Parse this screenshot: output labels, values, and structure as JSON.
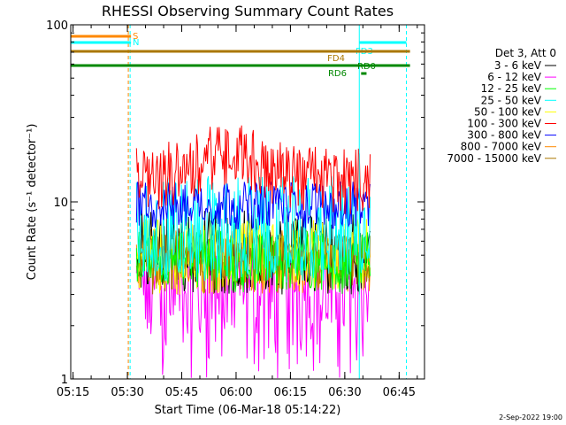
{
  "chart_data": {
    "type": "line",
    "title": "RHESSI Observing Summary Count Rates",
    "xlabel": "Start Time (06-Mar-18 05:14:22)",
    "ylabel": "Count Rate (s⁻¹ detector⁻¹)",
    "yscale": "log",
    "ylim": [
      1,
      100
    ],
    "xlim_minutes": [
      "05:14:22",
      "06:52:00"
    ],
    "x_ticks": [
      "05:15",
      "05:30",
      "05:45",
      "06:00",
      "06:15",
      "06:30",
      "06:45"
    ],
    "y_ticks": [
      "1",
      "10",
      "100"
    ],
    "legend_title": "Det 3, Att 0",
    "legend_position": "right",
    "series": [
      {
        "name": "3 - 6 keV",
        "color": "#000000",
        "base": 5.0,
        "low": 3.0,
        "high": 9.0
      },
      {
        "name": "6 - 12 keV",
        "color": "#ff00ff",
        "base": 3.5,
        "low": 1.0,
        "high": 5.0
      },
      {
        "name": "12 - 25 keV",
        "color": "#00ff00",
        "base": 4.5,
        "low": 3.0,
        "high": 7.0
      },
      {
        "name": "25 - 50 keV",
        "color": "#00ffff",
        "base": 5.5,
        "low": 3.5,
        "high": 14.0
      },
      {
        "name": "50 - 100 keV",
        "color": "#ffff00",
        "base": 5.0,
        "low": 3.0,
        "high": 8.0
      },
      {
        "name": "100 - 300 keV",
        "color": "#ff0000",
        "base": 16.0,
        "low": 10.0,
        "high": 24.0
      },
      {
        "name": "300 - 800 keV",
        "color": "#0000ff",
        "base": 9.5,
        "low": 7.0,
        "high": 13.0
      },
      {
        "name": "800 - 7000 keV",
        "color": "#ff8800",
        "base": 4.5,
        "low": 3.0,
        "high": 7.0
      },
      {
        "name": "7000 - 15000 keV",
        "color": "#aa7700",
        "base": 5.0,
        "low": 3.0,
        "high": 6.5
      }
    ],
    "data_span": [
      "05:32:30",
      "06:37:00"
    ],
    "flag_bars": [
      {
        "label": "S",
        "color": "#ff8800",
        "start": "05:14:22",
        "end": "05:31:00"
      },
      {
        "label": "N",
        "color": "#00ffff",
        "start": "05:14:22",
        "end": "05:31:00"
      },
      {
        "label": "FD3",
        "color": "#00ffff",
        "start": "06:34:00",
        "end": "06:47:00"
      },
      {
        "label": "FD4",
        "color": "#aa7700",
        "start": "05:14:22",
        "end": "06:48:00"
      },
      {
        "label": "RD0",
        "color": "#008800",
        "start": "05:14:22",
        "end": "06:48:00"
      },
      {
        "label": "RD6",
        "color": "#008800",
        "start": "06:34:30",
        "end": "06:36:00"
      }
    ],
    "vertical_markers": [
      {
        "time": "05:14:22",
        "color": "#00ffff",
        "style": "solid"
      },
      {
        "time": "05:30:15",
        "color": "#ff8800",
        "style": "dashed"
      },
      {
        "time": "05:30:45",
        "color": "#00ffff",
        "style": "dashed"
      },
      {
        "time": "06:34:00",
        "color": "#00ffff",
        "style": "solid"
      },
      {
        "time": "06:47:00",
        "color": "#00ffff",
        "style": "dashed"
      }
    ],
    "grid": false
  },
  "footer": {
    "date_stamp": "2-Sep-2022 19:00"
  }
}
